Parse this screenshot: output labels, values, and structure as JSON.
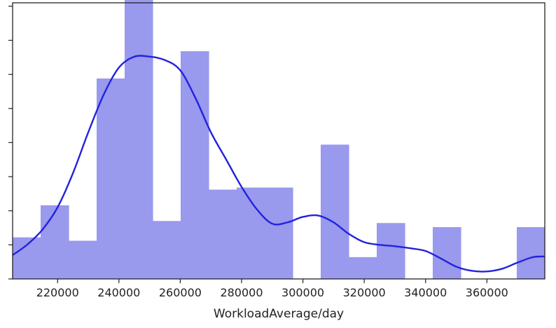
{
  "chart_data": {
    "type": "bar",
    "subtype": "histogram-with-kde",
    "xlabel": "WorkloadAverage/day",
    "ylabel": "",
    "title": "",
    "xlim": [
      205331,
      378884
    ],
    "x_ticks": [
      220000,
      240000,
      260000,
      280000,
      300000,
      320000,
      340000,
      360000
    ],
    "x_tick_labels": [
      "220000",
      "240000",
      "260000",
      "280000",
      "300000",
      "320000",
      "340000",
      "360000"
    ],
    "ylim": [
      0,
      40.5
    ],
    "y_ticks": [
      0,
      5,
      10,
      15,
      20,
      25,
      30,
      35,
      40
    ],
    "y_ticks_labels_cropped": true,
    "bins": [
      {
        "x0": 205331,
        "x1": 214465,
        "value": 6.1
      },
      {
        "x0": 214465,
        "x1": 223599,
        "value": 10.8
      },
      {
        "x0": 223599,
        "x1": 232733,
        "value": 5.6
      },
      {
        "x0": 232733,
        "x1": 241867,
        "value": 29.4
      },
      {
        "x0": 241867,
        "x1": 251001,
        "value": 41.7
      },
      {
        "x0": 251001,
        "x1": 260135,
        "value": 8.5
      },
      {
        "x0": 260135,
        "x1": 269269,
        "value": 33.4
      },
      {
        "x0": 269269,
        "x1": 278403,
        "value": 13.1
      },
      {
        "x0": 278403,
        "x1": 287537,
        "value": 13.4
      },
      {
        "x0": 287537,
        "x1": 296671,
        "value": 13.4
      },
      {
        "x0": 296671,
        "x1": 305805,
        "value": 0
      },
      {
        "x0": 305805,
        "x1": 314939,
        "value": 19.7
      },
      {
        "x0": 314939,
        "x1": 324073,
        "value": 3.2
      },
      {
        "x0": 324073,
        "x1": 333207,
        "value": 8.2
      },
      {
        "x0": 333207,
        "x1": 342341,
        "value": 0
      },
      {
        "x0": 342341,
        "x1": 351475,
        "value": 7.6
      },
      {
        "x0": 351475,
        "x1": 360609,
        "value": 0
      },
      {
        "x0": 360609,
        "x1": 369743,
        "value": 0
      },
      {
        "x0": 369743,
        "x1": 378877,
        "value": 7.6
      }
    ],
    "kde": {
      "x": [
        205331,
        210000,
        215000,
        220000,
        225000,
        230000,
        235000,
        240000,
        245000,
        250000,
        255000,
        260000,
        265000,
        270000,
        275000,
        280000,
        285000,
        290000,
        295000,
        300000,
        305000,
        310000,
        315000,
        320000,
        325000,
        330000,
        335000,
        340000,
        345000,
        350000,
        355000,
        360000,
        365000,
        370000,
        375000,
        378884
      ],
      "y": [
        3.5,
        5.0,
        7.2,
        10.5,
        15.5,
        21.5,
        27.0,
        31.0,
        32.6,
        32.6,
        32.1,
        30.6,
        26.5,
        21.5,
        17.5,
        13.5,
        10.2,
        8.1,
        8.3,
        9.1,
        9.3,
        8.3,
        6.6,
        5.4,
        5.0,
        4.8,
        4.5,
        4.1,
        3.0,
        1.8,
        1.2,
        1.1,
        1.5,
        2.4,
        3.2,
        3.3
      ]
    },
    "colors": {
      "bars": "#9999ee",
      "kde_line": "#2222dd",
      "axes": "#222222",
      "background": "#ffffff"
    },
    "grid": false,
    "legend": "none"
  }
}
